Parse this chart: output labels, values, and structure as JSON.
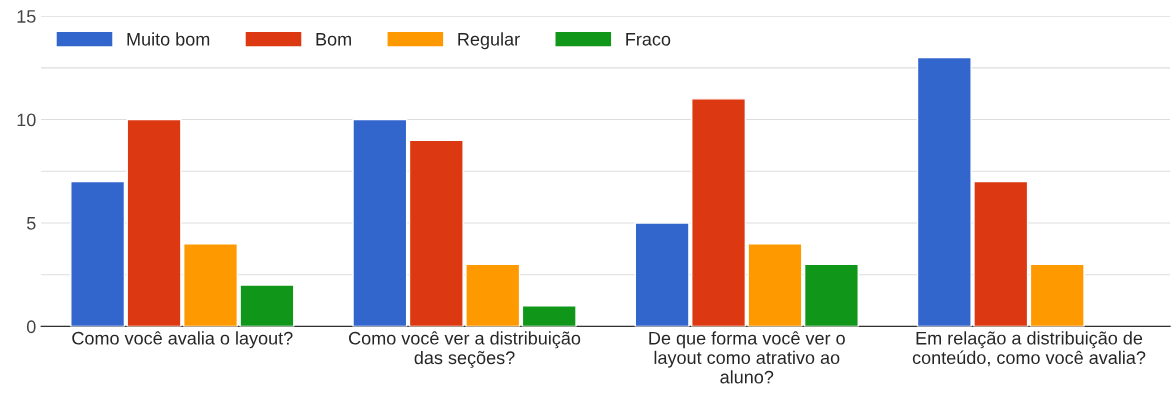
{
  "chart_data": {
    "type": "bar",
    "categories": [
      "Como você avalia o layout?",
      "Como você ver a distribuição\ndas seções?",
      "De que forma você ver o\nlayout como atrativo ao\naluno?",
      "Em relação a distribuição de\nconteúdo, como você avalia?"
    ],
    "series": [
      {
        "name": "Muito bom",
        "color": "#3366cc",
        "values": [
          7,
          10,
          5,
          13
        ]
      },
      {
        "name": "Bom",
        "color": "#dc3912",
        "values": [
          10,
          9,
          11,
          7
        ]
      },
      {
        "name": "Regular",
        "color": "#ff9900",
        "values": [
          4,
          3,
          4,
          3
        ]
      },
      {
        "name": "Fraco",
        "color": "#109618",
        "values": [
          2,
          1,
          3,
          null
        ]
      }
    ],
    "ylim": [
      0,
      15
    ],
    "yticks": [
      0,
      {
        "value": 2.5,
        "label": null
      },
      5,
      {
        "value": 7.5,
        "label": null
      },
      10,
      {
        "value": 12.5,
        "label": null
      },
      15
    ],
    "grid": "y",
    "legend": "top left"
  }
}
